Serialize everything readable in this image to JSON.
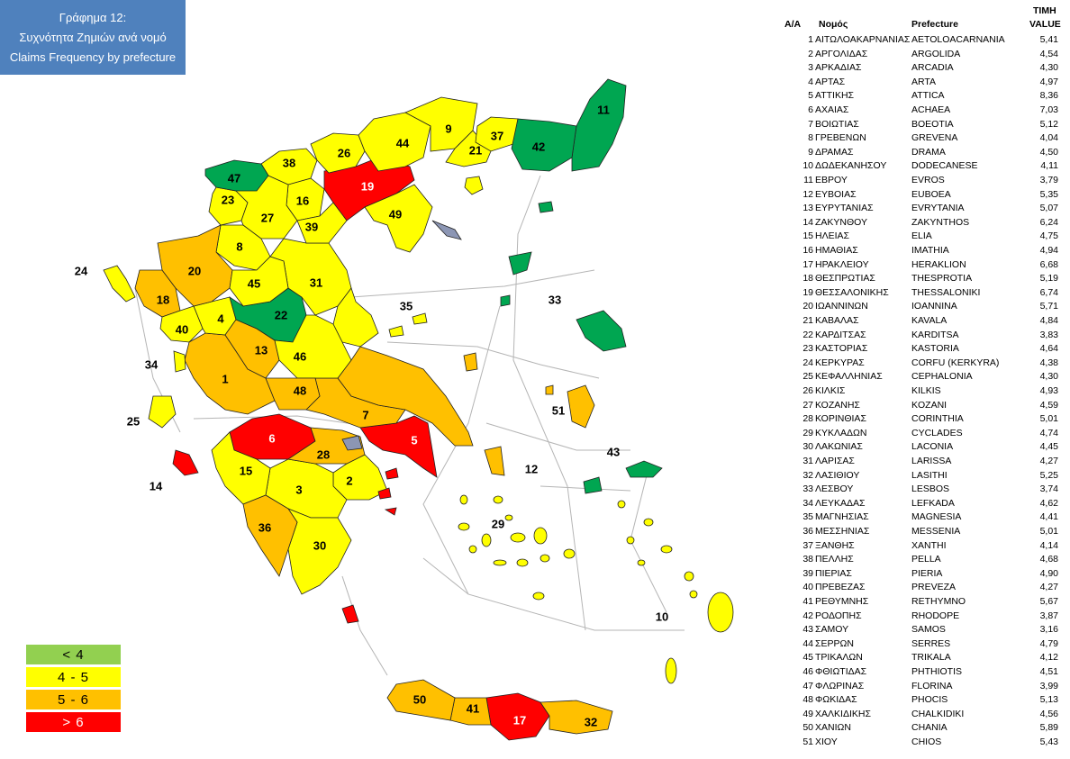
{
  "title": {
    "line1": "Γράφημα 12:",
    "line2": "Συχνότητα Ζημιών ανά νομό",
    "line3": "Claims Frequency  by prefecture"
  },
  "colors": {
    "green_map": "#00a651",
    "green_legend": "#92d050",
    "yellow": "#ffff00",
    "orange": "#ffc000",
    "red": "#ff0000",
    "title_bg": "#4f81bd",
    "unassigned": "#8c96b4"
  },
  "legend": [
    {
      "label": "< 4",
      "color": "#92d050",
      "text_color": "#000"
    },
    {
      "label": "4  -  5",
      "color": "#ffff00",
      "text_color": "#000"
    },
    {
      "label": "5  -  6",
      "color": "#ffc000",
      "text_color": "#000"
    },
    {
      "label": ">  6",
      "color": "#ff0000",
      "text_color": "#fff"
    }
  ],
  "table": {
    "headers": {
      "aa": "A/A",
      "nomos": "Νομός",
      "prefecture": "Prefecture",
      "value_gr": "ΤΙΜΗ",
      "value_en": "VALUE"
    },
    "rows": [
      {
        "n": "1",
        "gr": "ΑΙΤΩΛΟΑΚΑΡΝΑΝΙΑΣ",
        "en": "AETOLOACARNANIA",
        "v": "5,41"
      },
      {
        "n": "2",
        "gr": "ΑΡΓΟΛΙΔΑΣ",
        "en": "ARGOLIDA",
        "v": "4,54"
      },
      {
        "n": "3",
        "gr": "ΑΡΚΑΔΙΑΣ",
        "en": "ARCADIA",
        "v": "4,30"
      },
      {
        "n": "4",
        "gr": "ΑΡΤΑΣ",
        "en": "ARTA",
        "v": "4,97"
      },
      {
        "n": "5",
        "gr": "ΑΤΤΙΚΗΣ",
        "en": "ATTICA",
        "v": "8,36"
      },
      {
        "n": "6",
        "gr": "ΑΧΑΙΑΣ",
        "en": "ACHAEA",
        "v": "7,03"
      },
      {
        "n": "7",
        "gr": "ΒΟΙΩΤΙΑΣ",
        "en": "BOEOTIA",
        "v": "5,12"
      },
      {
        "n": "8",
        "gr": "ΓΡΕΒΕΝΩΝ",
        "en": "GREVENA",
        "v": "4,04"
      },
      {
        "n": "9",
        "gr": "ΔΡΑΜΑΣ",
        "en": "DRAMA",
        "v": "4,50"
      },
      {
        "n": "10",
        "gr": "ΔΩΔΕΚΑΝΗΣΟΥ",
        "en": "DODECANESE",
        "v": "4,11"
      },
      {
        "n": "11",
        "gr": "ΕΒΡΟΥ",
        "en": "EVROS",
        "v": "3,79"
      },
      {
        "n": "12",
        "gr": "ΕΥΒΟΙΑΣ",
        "en": "EUBOEA",
        "v": "5,35"
      },
      {
        "n": "13",
        "gr": "ΕΥΡΥΤΑΝΙΑΣ",
        "en": "EVRYTANIA",
        "v": "5,07"
      },
      {
        "n": "14",
        "gr": "ΖΑΚΥΝΘΟΥ",
        "en": "ZAKYNTHOS",
        "v": "6,24"
      },
      {
        "n": "15",
        "gr": "ΗΛΕΙΑΣ",
        "en": "ELIA",
        "v": "4,75"
      },
      {
        "n": "16",
        "gr": "ΗΜΑΘΙΑΣ",
        "en": "IMATHIA",
        "v": "4,94"
      },
      {
        "n": "17",
        "gr": "ΗΡΑΚΛΕΙΟΥ",
        "en": "HERAKLION",
        "v": "6,68"
      },
      {
        "n": "18",
        "gr": "ΘΕΣΠΡΩΤΙΑΣ",
        "en": "THESPROTIA",
        "v": "5,19"
      },
      {
        "n": "19",
        "gr": "ΘΕΣΣΑΛΟΝΙΚΗΣ",
        "en": "THESSALONIKI",
        "v": "6,74"
      },
      {
        "n": "20",
        "gr": "ΙΩΑΝΝΙΝΩΝ",
        "en": "IOANNINA",
        "v": "5,71"
      },
      {
        "n": "21",
        "gr": "ΚΑΒΑΛΑΣ",
        "en": "KAVALA",
        "v": "4,84"
      },
      {
        "n": "22",
        "gr": "ΚΑΡΔΙΤΣΑΣ",
        "en": "KARDITSA",
        "v": "3,83"
      },
      {
        "n": "23",
        "gr": "ΚΑΣΤΟΡΙΑΣ",
        "en": "KASTORIA",
        "v": "4,64"
      },
      {
        "n": "24",
        "gr": "ΚΕΡΚΥΡΑΣ",
        "en": "CORFU (KERKYRA)",
        "v": "4,38"
      },
      {
        "n": "25",
        "gr": "ΚΕΦΑΛΛΗΝΙΑΣ",
        "en": "CEPHALONIA",
        "v": "4,30"
      },
      {
        "n": "26",
        "gr": "ΚΙΛΚΙΣ",
        "en": "KILKIS",
        "v": "4,93"
      },
      {
        "n": "27",
        "gr": "ΚΟΖΑΝΗΣ",
        "en": "KOZANI",
        "v": "4,59"
      },
      {
        "n": "28",
        "gr": "ΚΟΡΙΝΘΙΑΣ",
        "en": "CORINTHIA",
        "v": "5,01"
      },
      {
        "n": "29",
        "gr": "ΚΥΚΛΑΔΩΝ",
        "en": "CYCLADES",
        "v": "4,74"
      },
      {
        "n": "30",
        "gr": "ΛΑΚΩΝΙΑΣ",
        "en": "LACONIA",
        "v": "4,45"
      },
      {
        "n": "31",
        "gr": "ΛΑΡΙΣΑΣ",
        "en": "LARISSA",
        "v": "4,27"
      },
      {
        "n": "32",
        "gr": "ΛΑΣΙΘΙΟΥ",
        "en": "LASITHI",
        "v": "5,25"
      },
      {
        "n": "33",
        "gr": "ΛΕΣΒΟΥ",
        "en": "LESBOS",
        "v": "3,74"
      },
      {
        "n": "34",
        "gr": "ΛΕΥΚΑΔΑΣ",
        "en": "LEFKADA",
        "v": "4,62"
      },
      {
        "n": "35",
        "gr": "ΜΑΓΝΗΣΙΑΣ",
        "en": "MAGNESIA",
        "v": "4,41"
      },
      {
        "n": "36",
        "gr": "ΜΕΣΣΗΝΙΑΣ",
        "en": "MESSENIA",
        "v": "5,01"
      },
      {
        "n": "37",
        "gr": "ΞΑΝΘΗΣ",
        "en": "XANTHI",
        "v": "4,14"
      },
      {
        "n": "38",
        "gr": "ΠΕΛΛΗΣ",
        "en": "PELLA",
        "v": "4,68"
      },
      {
        "n": "39",
        "gr": "ΠΙΕΡΙΑΣ",
        "en": "PIERIA",
        "v": "4,90"
      },
      {
        "n": "40",
        "gr": "ΠΡΕΒΕΖΑΣ",
        "en": "PREVEZA",
        "v": "4,27"
      },
      {
        "n": "41",
        "gr": "ΡΕΘΥΜΝΗΣ",
        "en": "RETHYMNO",
        "v": "5,67"
      },
      {
        "n": "42",
        "gr": "ΡΟΔΟΠΗΣ",
        "en": "RHODOPE",
        "v": "3,87"
      },
      {
        "n": "43",
        "gr": "ΣΑΜΟΥ",
        "en": "SAMOS",
        "v": "3,16"
      },
      {
        "n": "44",
        "gr": "ΣΕΡΡΩΝ",
        "en": "SERRES",
        "v": "4,79"
      },
      {
        "n": "45",
        "gr": "ΤΡΙΚΑΛΩΝ",
        "en": "TRIKALA",
        "v": "4,12"
      },
      {
        "n": "46",
        "gr": "ΦΘΙΩΤΙΔΑΣ",
        "en": "PHTHIOTIS",
        "v": "4,51"
      },
      {
        "n": "47",
        "gr": "ΦΛΩΡΙΝΑΣ",
        "en": "FLORINA",
        "v": "3,99"
      },
      {
        "n": "48",
        "gr": "ΦΩΚΙΔΑΣ",
        "en": "PHOCIS",
        "v": "5,13"
      },
      {
        "n": "49",
        "gr": "ΧΑΛΚΙΔΙΚΗΣ",
        "en": "CHALKIDIKI",
        "v": "4,56"
      },
      {
        "n": "50",
        "gr": "ΧΑΝΙΩΝ",
        "en": "CHANIA",
        "v": "5,89"
      },
      {
        "n": "51",
        "gr": "ΧΙΟΥ",
        "en": "CHIOS",
        "v": "5,43"
      }
    ]
  }
}
